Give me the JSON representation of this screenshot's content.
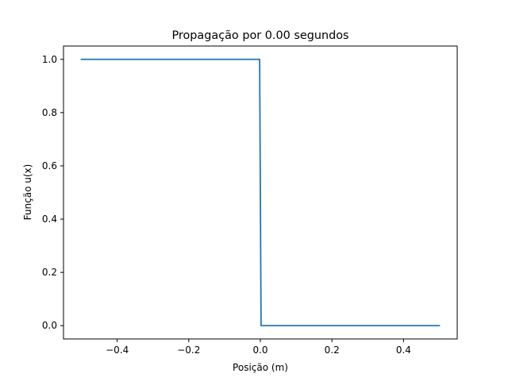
{
  "chart_data": {
    "type": "line",
    "title": "Propagação por 0.00 segundos",
    "xlabel": "Posição (m)",
    "ylabel": "Função u(x)",
    "xlim": [
      -0.55,
      0.55
    ],
    "ylim": [
      -0.05,
      1.05
    ],
    "xticks": [
      -0.4,
      -0.2,
      0.0,
      0.2,
      0.4
    ],
    "xtick_labels": [
      "−0.4",
      "−0.2",
      "0.0",
      "0.2",
      "0.4"
    ],
    "yticks": [
      0.0,
      0.2,
      0.4,
      0.6,
      0.8,
      1.0
    ],
    "ytick_labels": [
      "0.0",
      "0.2",
      "0.4",
      "0.6",
      "0.8",
      "1.0"
    ],
    "grid": false,
    "series": [
      {
        "color": "#1f77b4",
        "x": [
          -0.5,
          -0.002,
          0.002,
          0.5
        ],
        "y": [
          1.0,
          1.0,
          0.0,
          0.0
        ]
      }
    ]
  }
}
